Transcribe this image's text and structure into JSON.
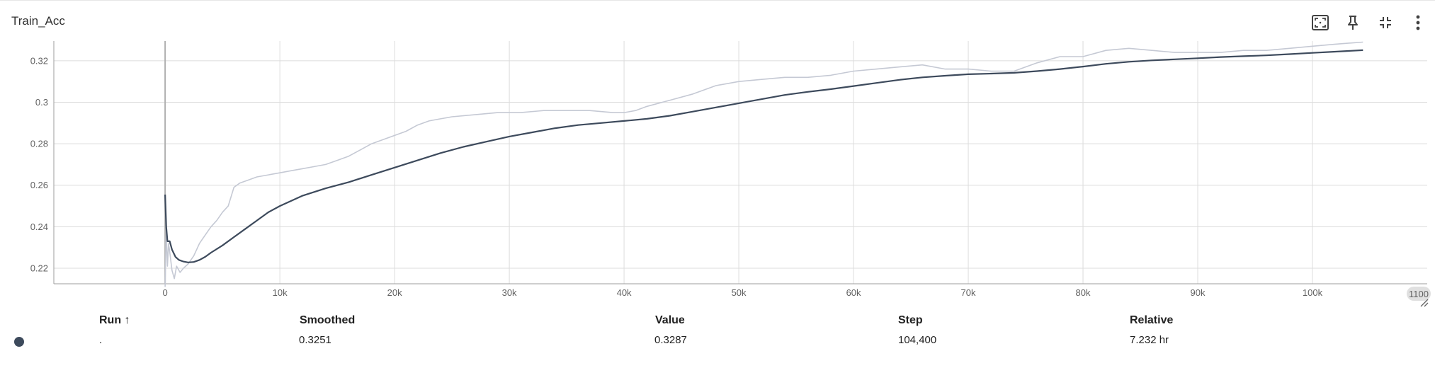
{
  "card": {
    "title": "Train_Acc",
    "toolbar": [
      {
        "name": "fit-domain-button",
        "icon": "fit-to-data-icon"
      },
      {
        "name": "pin-button",
        "icon": "pin-icon"
      },
      {
        "name": "collapse-button",
        "icon": "collapse-icon"
      },
      {
        "name": "more-options-button",
        "icon": "more-vertical-icon"
      }
    ]
  },
  "colors": {
    "smoothed": "#3d4a5c",
    "raw": "#c5c9d4",
    "grid": "#dcdcdc",
    "axis": "#9e9e9e",
    "run_dot": "#3d4a5c"
  },
  "chart_data": {
    "type": "line",
    "title": "Train_Acc",
    "xlabel": "",
    "ylabel": "",
    "xlim": [
      -9700,
      110000
    ],
    "ylim": [
      0.2125,
      0.3295
    ],
    "xticks": [
      0,
      10000,
      20000,
      30000,
      40000,
      50000,
      60000,
      70000,
      80000,
      90000,
      100000
    ],
    "xtick_labels": [
      "0",
      "10k",
      "20k",
      "30k",
      "40k",
      "50k",
      "60k",
      "70k",
      "80k",
      "90k",
      "100k"
    ],
    "xaxis_end_label": "1100",
    "yticks": [
      0.22,
      0.24,
      0.26,
      0.28,
      0.3,
      0.32
    ],
    "ytick_labels": [
      "0.22",
      "0.24",
      "0.26",
      "0.28",
      "0.3",
      "0.32"
    ],
    "grid": true,
    "series": [
      {
        "role": "raw",
        "x": [
          0,
          100,
          200,
          300,
          400,
          600,
          800,
          1000,
          1300,
          1600,
          2000,
          2500,
          3000,
          3500,
          4000,
          4500,
          5000,
          5500,
          6000,
          6500,
          7000,
          8000,
          9000,
          10000,
          11000,
          12000,
          13000,
          14000,
          15000,
          16000,
          17000,
          18000,
          19000,
          20000,
          21000,
          22000,
          23000,
          24000,
          25000,
          27000,
          29000,
          31000,
          33000,
          35000,
          37000,
          39000,
          40000,
          41000,
          42000,
          44000,
          46000,
          48000,
          50000,
          52000,
          54000,
          56000,
          58000,
          60000,
          62000,
          64000,
          66000,
          68000,
          70000,
          72000,
          74000,
          76000,
          78000,
          80000,
          82000,
          84000,
          86000,
          88000,
          90000,
          92000,
          94000,
          96000,
          98000,
          100000,
          102000,
          104400
        ],
        "y": [
          0.211,
          0.238,
          0.221,
          0.232,
          0.228,
          0.219,
          0.215,
          0.221,
          0.218,
          0.22,
          0.222,
          0.226,
          0.232,
          0.236,
          0.24,
          0.243,
          0.247,
          0.25,
          0.259,
          0.261,
          0.262,
          0.264,
          0.265,
          0.266,
          0.267,
          0.268,
          0.269,
          0.27,
          0.272,
          0.274,
          0.277,
          0.28,
          0.282,
          0.284,
          0.286,
          0.289,
          0.291,
          0.292,
          0.293,
          0.294,
          0.295,
          0.295,
          0.296,
          0.296,
          0.296,
          0.295,
          0.295,
          0.296,
          0.298,
          0.301,
          0.304,
          0.308,
          0.31,
          0.311,
          0.312,
          0.312,
          0.313,
          0.315,
          0.316,
          0.317,
          0.318,
          0.316,
          0.316,
          0.315,
          0.315,
          0.319,
          0.322,
          0.322,
          0.325,
          0.326,
          0.325,
          0.324,
          0.324,
          0.324,
          0.325,
          0.325,
          0.326,
          0.327,
          0.328,
          0.329
        ]
      },
      {
        "role": "smoothed",
        "x": [
          0,
          100,
          200,
          400,
          600,
          900,
          1200,
          1600,
          2000,
          2500,
          3000,
          3500,
          4000,
          5000,
          6000,
          7000,
          8000,
          9000,
          10000,
          12000,
          14000,
          16000,
          18000,
          20000,
          22000,
          24000,
          26000,
          28000,
          30000,
          32000,
          34000,
          36000,
          38000,
          40000,
          42000,
          44000,
          46000,
          48000,
          50000,
          52000,
          54000,
          56000,
          58000,
          60000,
          62000,
          64000,
          66000,
          68000,
          70000,
          72000,
          74000,
          76000,
          78000,
          80000,
          82000,
          84000,
          86000,
          88000,
          90000,
          92000,
          94000,
          96000,
          98000,
          100000,
          102000,
          104400
        ],
        "y": [
          0.2555,
          0.24,
          0.233,
          0.233,
          0.229,
          0.2255,
          0.224,
          0.2232,
          0.2228,
          0.223,
          0.224,
          0.2255,
          0.2275,
          0.231,
          0.235,
          0.239,
          0.243,
          0.247,
          0.25,
          0.255,
          0.2585,
          0.2615,
          0.265,
          0.2685,
          0.272,
          0.2755,
          0.2785,
          0.281,
          0.2835,
          0.2855,
          0.2875,
          0.289,
          0.29,
          0.291,
          0.292,
          0.2935,
          0.2955,
          0.2975,
          0.2995,
          0.3015,
          0.3035,
          0.305,
          0.3063,
          0.3078,
          0.3093,
          0.3108,
          0.312,
          0.3128,
          0.3135,
          0.3138,
          0.3142,
          0.315,
          0.316,
          0.3172,
          0.3185,
          0.3195,
          0.3202,
          0.3207,
          0.3212,
          0.3218,
          0.3222,
          0.3226,
          0.3232,
          0.3238,
          0.3244,
          0.3251
        ]
      }
    ]
  },
  "table": {
    "headers": {
      "run": "Run ↑",
      "smoothed": "Smoothed",
      "value": "Value",
      "step": "Step",
      "relative": "Relative"
    },
    "row": {
      "run": ".",
      "smoothed": "0.3251",
      "value": "0.3287",
      "step": "104,400",
      "relative": "7.232 hr"
    }
  }
}
